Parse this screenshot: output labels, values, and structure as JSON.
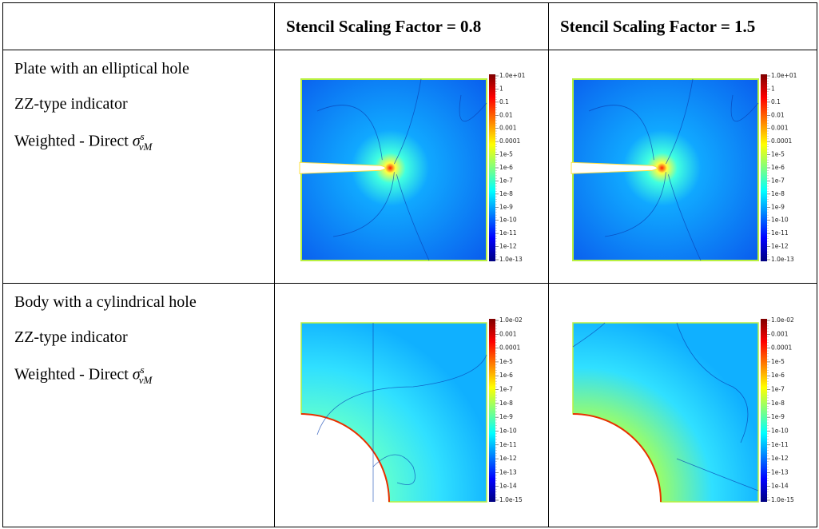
{
  "table": {
    "columns": [
      "Stencil Scaling Factor = 0.8",
      "Stencil Scaling Factor = 1.5"
    ],
    "rows": [
      {
        "lines": [
          "Plate with an elliptical hole",
          "ZZ-type indicator",
          "Weighted - Direct"
        ],
        "symbol": {
          "base": "σ",
          "sup": "s",
          "sub": "vM"
        },
        "plots": [
          {
            "colorbar": [
              "1.0e+01",
              "1",
              "0.1",
              "0.01",
              "0.001",
              "0.0001",
              "1e-5",
              "1e-6",
              "1e-7",
              "1e-8",
              "1e-9",
              "1e-10",
              "1e-11",
              "1e-12",
              "1.0e-13"
            ]
          },
          {
            "colorbar": [
              "1.0e+01",
              "1",
              "0.1",
              "0.01",
              "0.001",
              "0.0001",
              "1e-5",
              "1e-6",
              "1e-7",
              "1e-8",
              "1e-9",
              "1e-10",
              "1e-11",
              "1e-12",
              "1.0e-13"
            ]
          }
        ]
      },
      {
        "lines": [
          "Body with a cylindrical hole",
          "ZZ-type indicator",
          "Weighted - Direct"
        ],
        "symbol": {
          "base": "σ",
          "sup": "s",
          "sub": "vM"
        },
        "plots": [
          {
            "colorbar": [
              "1.0e-02",
              "0.001",
              "0.0001",
              "1e-5",
              "1e-6",
              "1e-7",
              "1e-8",
              "1e-9",
              "1e-10",
              "1e-11",
              "1e-12",
              "1e-13",
              "1e-14",
              "1.0e-15"
            ]
          },
          {
            "colorbar": [
              "1.0e-02",
              "0.001",
              "0.0001",
              "1e-5",
              "1e-6",
              "1e-7",
              "1e-8",
              "1e-9",
              "1e-10",
              "1e-11",
              "1e-12",
              "1e-13",
              "1e-14",
              "1.0e-15"
            ]
          }
        ]
      }
    ]
  }
}
